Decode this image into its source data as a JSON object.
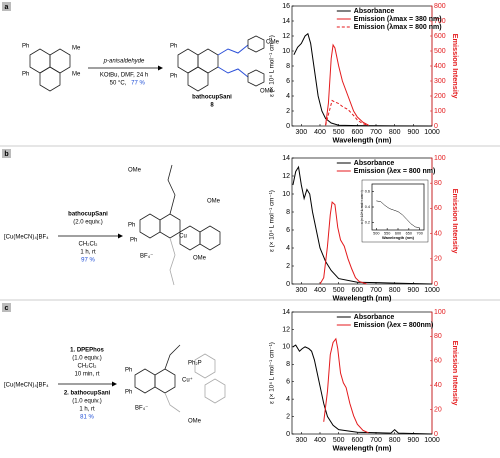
{
  "panels": [
    "a",
    "b",
    "c"
  ],
  "schemes": {
    "a": {
      "ph": "Ph",
      "me": "Me",
      "ome": "OMe",
      "reagent": "p-anisaldehyde",
      "cond1": "KOtBu, DMF, 24 h",
      "cond2": "50 °C,",
      "yield": "77 %",
      "product": "bathocupSani",
      "number": "8"
    },
    "b": {
      "reactant": "[Cu(MeCN)₄]BF₄",
      "reagent": "bathocupSani",
      "equiv": "(2.0 equiv.)",
      "solvent": "CH₂Cl₂",
      "time": "1 h, rt",
      "yield": "97 %",
      "ome": "OMe",
      "ph": "Ph",
      "cu": "Cu",
      "anion": "BF₄⁻"
    },
    "c": {
      "reactant": "[Cu(MeCN)₄]BF₄",
      "step1": "1. DPEPhos",
      "equiv1": "(1.0 equiv.)",
      "solvent": "CH₂Cl₂",
      "time1": "10 min, rt",
      "step2": "2. bathocupSani",
      "equiv2": "(1.0 equiv.)",
      "time2": "1 h, rt",
      "yield": "81 %",
      "ph": "Ph",
      "pph": "Ph₂P",
      "cu": "Cu⁺",
      "anion": "BF₄⁻",
      "ome": "OMe"
    }
  },
  "chart_data": [
    {
      "type": "line",
      "xlabel": "Wavelength (nm)",
      "ylabel": "ε (× 10⁴ L mol⁻¹ cm⁻¹)",
      "y2label": "Emission Intensity",
      "xlim": [
        250,
        1000
      ],
      "xticks": [
        300,
        400,
        500,
        600,
        700,
        800,
        900,
        1000
      ],
      "ylim": [
        0,
        16
      ],
      "yticks": [
        0,
        2,
        4,
        6,
        8,
        10,
        12,
        14,
        16
      ],
      "y2lim": [
        0,
        800
      ],
      "y2ticks": [
        0,
        100,
        200,
        300,
        400,
        500,
        600,
        700,
        800
      ],
      "y2color": "#e41a1c",
      "legend": "upper right",
      "series": [
        {
          "name": "Absorbance",
          "color": "#000000",
          "x": [
            260,
            280,
            300,
            320,
            335,
            350,
            370,
            390,
            410,
            430,
            460,
            500,
            600,
            800,
            1000
          ],
          "values": [
            9.5,
            10.5,
            11,
            12,
            12.3,
            11,
            7.5,
            4,
            2,
            1,
            0.4,
            0.1,
            0.05,
            0.02,
            0
          ]
        },
        {
          "name": "Emission (λmax = 380 nm)",
          "color": "#e41a1c",
          "dash": false,
          "axis": "y2",
          "x": [
            430,
            445,
            460,
            470,
            480,
            500,
            520,
            550,
            580,
            600,
            630,
            660
          ],
          "values": [
            5,
            150,
            450,
            540,
            520,
            400,
            300,
            200,
            100,
            60,
            25,
            5
          ]
        },
        {
          "name": "Emission (λmax = 800 nm)",
          "color": "#e41a1c",
          "dash": true,
          "axis": "y2",
          "x": [
            430,
            450,
            465,
            480,
            500,
            520,
            550,
            580,
            600,
            630,
            660
          ],
          "values": [
            5,
            100,
            170,
            160,
            150,
            130,
            110,
            70,
            40,
            15,
            3
          ]
        }
      ]
    },
    {
      "type": "line",
      "xlabel": "Wavelength (nm)",
      "ylabel": "ε (× 10⁴ L mol⁻¹ cm⁻¹)",
      "y2label": "Emission Intensity",
      "xlim": [
        250,
        1000
      ],
      "xticks": [
        300,
        400,
        500,
        600,
        700,
        800,
        900,
        1000
      ],
      "ylim": [
        0,
        14
      ],
      "yticks": [
        0,
        2,
        4,
        6,
        8,
        10,
        12,
        14
      ],
      "y2lim": [
        0,
        100
      ],
      "y2ticks": [
        0,
        20,
        40,
        60,
        80,
        100
      ],
      "y2color": "#e41a1c",
      "legend": "upper right",
      "series": [
        {
          "name": "Absorbance",
          "color": "#000000",
          "x": [
            255,
            270,
            285,
            300,
            315,
            330,
            345,
            360,
            380,
            400,
            430,
            460,
            500,
            600,
            800,
            1000
          ],
          "values": [
            11,
            12.5,
            13,
            11,
            9.5,
            10.5,
            10,
            8,
            6,
            4,
            2.5,
            1.5,
            0.6,
            0.2,
            0.1,
            0
          ]
        },
        {
          "name": "Emission (λex = 800 nm)",
          "color": "#e41a1c",
          "dash": false,
          "axis": "y2",
          "x": [
            400,
            420,
            440,
            455,
            465,
            480,
            495,
            510,
            530,
            550,
            570,
            590,
            610,
            650
          ],
          "values": [
            0,
            5,
            30,
            55,
            65,
            63,
            45,
            35,
            30,
            20,
            12,
            5,
            2,
            0
          ]
        }
      ]
    },
    {
      "type": "line",
      "xlabel": "Wavelength (nm)",
      "ylabel": "ε (× 10⁴ L mol⁻¹ cm⁻¹)",
      "xlim": [
        480,
        720
      ],
      "xticks": [
        500,
        550,
        600,
        650,
        700
      ],
      "ylim": [
        0.1,
        0.7
      ],
      "yticks": [
        0.2,
        0.4,
        0.6
      ],
      "inset": true,
      "series": [
        {
          "color": "#000000",
          "x": [
            500,
            520,
            540,
            560,
            580,
            600,
            620,
            640,
            660,
            680,
            700
          ],
          "values": [
            0.48,
            0.47,
            0.42,
            0.38,
            0.36,
            0.34,
            0.3,
            0.24,
            0.18,
            0.14,
            0.13
          ]
        }
      ]
    },
    {
      "type": "line",
      "xlabel": "Wavelength (nm)",
      "ylabel": "ε (× 10⁴ L mol⁻¹ cm⁻¹)",
      "y2label": "Emission Intensity",
      "xlim": [
        250,
        1000
      ],
      "xticks": [
        300,
        400,
        500,
        600,
        700,
        800,
        900,
        1000
      ],
      "ylim": [
        0,
        14
      ],
      "yticks": [
        0,
        2,
        4,
        6,
        8,
        10,
        12,
        14
      ],
      "y2lim": [
        0,
        100
      ],
      "y2ticks": [
        0,
        20,
        40,
        60,
        80,
        100
      ],
      "y2color": "#e41a1c",
      "legend": "upper right",
      "series": [
        {
          "name": "Absorbance",
          "color": "#000000",
          "x": [
            255,
            270,
            290,
            305,
            320,
            340,
            355,
            370,
            385,
            400,
            420,
            440,
            470,
            500,
            600,
            780,
            800,
            820,
            1000
          ],
          "values": [
            10,
            10.2,
            9.5,
            9.8,
            10,
            9.8,
            9.5,
            8.5,
            7,
            5.5,
            3.5,
            2,
            1,
            0.5,
            0.2,
            0.1,
            0.5,
            0.1,
            0
          ]
        },
        {
          "name": "Emission (λex = 800nm)",
          "color": "#e41a1c",
          "dash": false,
          "axis": "y2",
          "x": [
            420,
            440,
            455,
            470,
            485,
            495,
            510,
            525,
            540,
            560,
            580,
            600,
            630,
            660
          ],
          "values": [
            10,
            35,
            65,
            75,
            78,
            70,
            50,
            42,
            38,
            25,
            15,
            8,
            3,
            1
          ]
        }
      ]
    }
  ]
}
